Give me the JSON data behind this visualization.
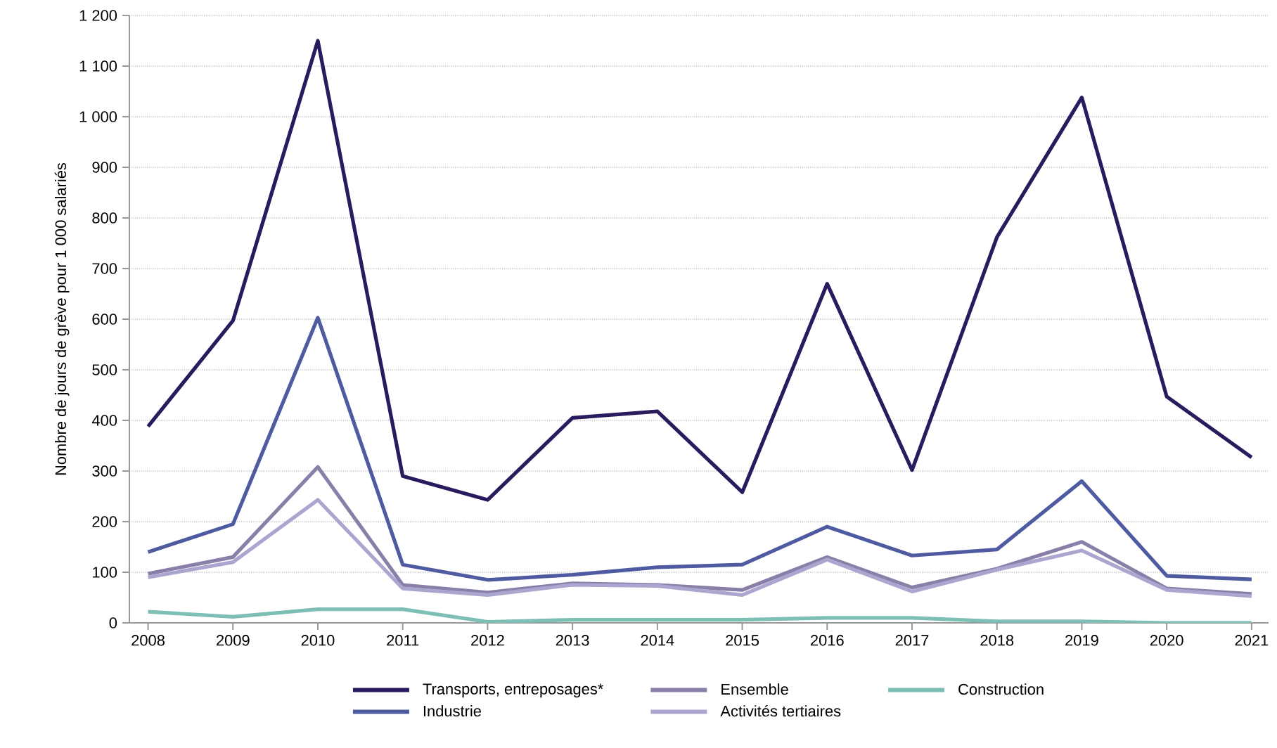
{
  "chart_data": {
    "type": "line",
    "ylabel": "Nombre de jours de grève pour 1 000 salariés",
    "x": [
      2008,
      2009,
      2010,
      2011,
      2012,
      2013,
      2014,
      2015,
      2016,
      2017,
      2018,
      2019,
      2020,
      2021
    ],
    "xlim": [
      2007.78,
      2021.2
    ],
    "xticks": [
      2008,
      2009,
      2010,
      2011,
      2012,
      2013,
      2014,
      2015,
      2016,
      2017,
      2018,
      2019,
      2020,
      2021
    ],
    "ylim": [
      0,
      1200
    ],
    "yticks": [
      0,
      100,
      200,
      300,
      400,
      500,
      600,
      700,
      800,
      900,
      {
        "value": 1000,
        "label": "1 000"
      },
      {
        "value": 1100,
        "label": "1 100"
      },
      {
        "value": 1200,
        "label": "1 200"
      }
    ],
    "grid": "y",
    "legend": "bottom",
    "line_style": "solid",
    "marker": "none",
    "series": [
      {
        "name": "Transports, entreposages*",
        "color": "#2a1a5e",
        "values": [
          388,
          597,
          1150,
          290,
          243,
          405,
          418,
          258,
          670,
          302,
          762,
          1038,
          447,
          327
        ]
      },
      {
        "name": "Ensemble",
        "color": "#8a7fa8",
        "values": [
          97,
          130,
          308,
          75,
          60,
          78,
          75,
          65,
          130,
          70,
          107,
          160,
          68,
          57
        ]
      },
      {
        "name": "Construction",
        "color": "#7dbfb5",
        "values": [
          22,
          12,
          27,
          27,
          2,
          6,
          6,
          6,
          10,
          10,
          3,
          3,
          0,
          0
        ]
      },
      {
        "name": "Industrie",
        "color": "#4f5ba0",
        "values": [
          140,
          195,
          603,
          115,
          85,
          95,
          110,
          115,
          190,
          133,
          145,
          280,
          93,
          86
        ]
      },
      {
        "name": "Activités tertiaires",
        "color": "#aaa6d0",
        "values": [
          90,
          120,
          243,
          68,
          55,
          75,
          73,
          55,
          125,
          62,
          105,
          143,
          65,
          53
        ]
      }
    ]
  }
}
